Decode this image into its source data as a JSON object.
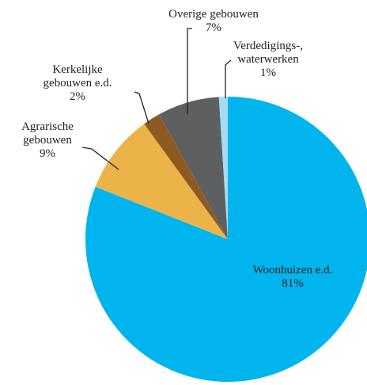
{
  "chart_data": {
    "type": "pie",
    "categories": [
      "Woonhuizen e.d.",
      "Agrarische\ngebouwen",
      "Kerkelijke\ngebouwen e.d.",
      "Overige gebouwen",
      "Verdedigings-,\nwaterwerken"
    ],
    "values": [
      81,
      9,
      2,
      7,
      1
    ],
    "value_labels": [
      "81%",
      "9%",
      "2%",
      "7%",
      "1%"
    ],
    "colors": [
      "#00b4ee",
      "#ecb448",
      "#8f5a22",
      "#5e5f61",
      "#a6dbf5"
    ]
  }
}
